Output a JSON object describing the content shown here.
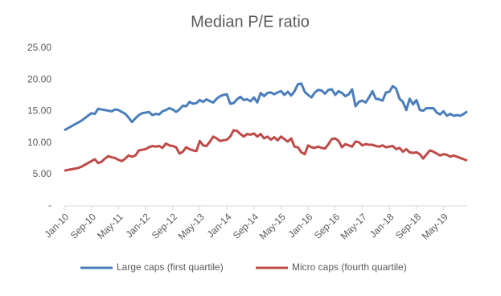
{
  "chart_data": {
    "type": "line",
    "title": "Median P/E ratio",
    "categories": [
      "Jan-10",
      null,
      null,
      null,
      null,
      null,
      null,
      null,
      "Sep-10",
      null,
      null,
      null,
      null,
      null,
      null,
      null,
      "May-11",
      null,
      null,
      null,
      null,
      null,
      null,
      null,
      "Jan-12",
      null,
      null,
      null,
      null,
      null,
      null,
      null,
      "Sep-12",
      null,
      null,
      null,
      null,
      null,
      null,
      null,
      "May-13",
      null,
      null,
      null,
      null,
      null,
      null,
      null,
      "Jan-14",
      null,
      null,
      null,
      null,
      null,
      null,
      null,
      "Sep-14",
      null,
      null,
      null,
      null,
      null,
      null,
      null,
      "May-15",
      null,
      null,
      null,
      null,
      null,
      null,
      null,
      "Jan-16",
      null,
      null,
      null,
      null,
      null,
      null,
      null,
      "Sep-16",
      null,
      null,
      null,
      null,
      null,
      null,
      null,
      "May-17",
      null,
      null,
      null,
      null,
      null,
      null,
      null,
      "Jan-18",
      null,
      null,
      null,
      null,
      null,
      null,
      null,
      "Sep-18",
      null,
      null,
      null,
      null,
      null,
      null,
      null,
      "May-19",
      null,
      null,
      null,
      null,
      null,
      null,
      null
    ],
    "series": [
      {
        "name": "Large caps (first quartile)",
        "color": "#4a7ebb",
        "values": [
          12.0,
          12.3,
          12.6,
          12.9,
          13.2,
          13.5,
          13.9,
          14.3,
          14.7,
          14.6,
          15.4,
          15.3,
          15.2,
          15.1,
          15.0,
          15.3,
          15.2,
          14.9,
          14.6,
          14.0,
          13.3,
          13.9,
          14.4,
          14.7,
          14.8,
          14.9,
          14.4,
          14.6,
          14.5,
          15.0,
          15.2,
          15.5,
          15.3,
          14.9,
          15.3,
          15.9,
          15.8,
          16.5,
          16.2,
          16.3,
          16.8,
          16.5,
          16.9,
          16.6,
          16.4,
          17.0,
          17.4,
          17.6,
          17.7,
          16.2,
          16.3,
          16.9,
          17.3,
          16.8,
          16.9,
          16.6,
          17.2,
          16.4,
          17.9,
          17.4,
          17.9,
          18.0,
          17.7,
          18.0,
          18.2,
          17.6,
          18.1,
          17.5,
          18.2,
          19.3,
          19.4,
          18.1,
          17.6,
          17.2,
          18.0,
          18.4,
          18.3,
          17.8,
          18.4,
          18.5,
          17.6,
          18.2,
          17.9,
          17.4,
          17.7,
          18.5,
          15.8,
          16.5,
          16.7,
          16.4,
          17.2,
          18.2,
          17.0,
          16.9,
          16.7,
          18.0,
          18.1,
          19.0,
          18.6,
          17.0,
          16.5,
          15.2,
          17.0,
          16.1,
          16.8,
          15.2,
          15.1,
          15.5,
          15.5,
          15.5,
          14.8,
          14.5,
          15.0,
          14.3,
          14.6,
          14.3,
          14.4,
          14.3,
          14.6,
          15.0
        ]
      },
      {
        "name": "Micro caps (fourth quartile)",
        "color": "#be4b48",
        "values": [
          5.6,
          5.7,
          5.8,
          5.9,
          6.0,
          6.2,
          6.5,
          6.8,
          7.1,
          7.4,
          6.8,
          7.0,
          7.5,
          7.9,
          7.7,
          7.6,
          7.3,
          7.1,
          7.5,
          8.0,
          7.8,
          8.0,
          8.8,
          8.9,
          9.0,
          9.3,
          9.5,
          9.4,
          9.5,
          9.2,
          9.9,
          9.6,
          9.5,
          9.3,
          8.3,
          8.6,
          9.3,
          9.0,
          8.8,
          8.7,
          10.3,
          9.6,
          9.5,
          10.2,
          11.0,
          10.7,
          10.3,
          10.4,
          10.5,
          11.0,
          12.0,
          11.9,
          11.4,
          11.0,
          11.4,
          11.3,
          11.5,
          11.0,
          11.4,
          10.7,
          11.0,
          10.5,
          10.9,
          10.4,
          11.0,
          10.6,
          10.2,
          10.7,
          9.4,
          9.3,
          8.5,
          8.2,
          9.6,
          9.3,
          9.2,
          9.4,
          9.2,
          9.1,
          9.8,
          10.6,
          10.7,
          10.3,
          9.3,
          9.8,
          9.6,
          9.4,
          10.2,
          10.1,
          9.6,
          9.8,
          9.7,
          9.7,
          9.5,
          9.4,
          9.6,
          9.3,
          9.4,
          9.5,
          9.0,
          9.2,
          8.6,
          9.0,
          8.5,
          8.4,
          8.5,
          8.2,
          7.5,
          8.2,
          8.8,
          8.6,
          8.3,
          8.0,
          8.2,
          8.1,
          7.8,
          8.0,
          7.8,
          7.6,
          7.4,
          7.2
        ]
      }
    ],
    "ylim": [
      0,
      25
    ],
    "yticks": [
      {
        "value": 0,
        "label": "-"
      },
      {
        "value": 5,
        "label": "5.00"
      },
      {
        "value": 10,
        "label": "10.00"
      },
      {
        "value": 15,
        "label": "15.00"
      },
      {
        "value": 20,
        "label": "20.00"
      },
      {
        "value": 25,
        "label": "25.00"
      }
    ],
    "grid": false,
    "legend": "bottom"
  }
}
